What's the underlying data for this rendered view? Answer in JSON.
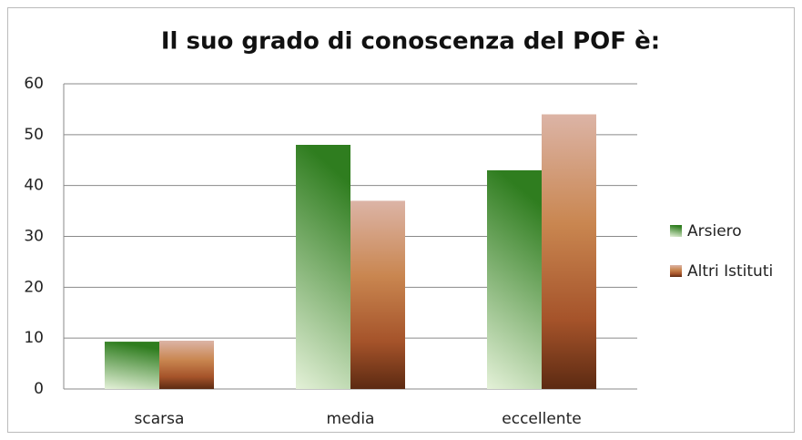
{
  "chart_data": {
    "type": "bar",
    "title": "Il suo grado di conoscenza del POF è:",
    "categories": [
      "scarsa",
      "media",
      "eccellente"
    ],
    "series": [
      {
        "name": "Arsiero",
        "color": "#2f7d1f",
        "values": [
          9.3,
          48,
          43
        ]
      },
      {
        "name": "Altri Istituti",
        "color": "#c98650",
        "values": [
          9.5,
          37,
          54
        ]
      }
    ],
    "ylim": [
      0,
      60
    ],
    "yticks": [
      0,
      10,
      20,
      30,
      40,
      50,
      60
    ],
    "grid": true,
    "legend": "right"
  }
}
